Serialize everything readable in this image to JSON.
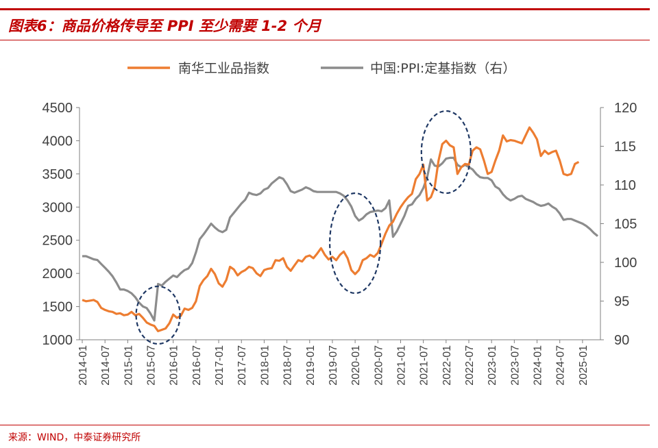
{
  "header": {
    "title": "图表6：商品价格传导至 PPI 至少需要 1-2 个月"
  },
  "footer": {
    "source": "来源：WIND，中泰证券研究所"
  },
  "colors": {
    "accent": "#c00000",
    "series1": "#ed7d31",
    "series2": "#8c8c8c",
    "ellipse": "#1f3864",
    "axis": "#7f7f7f"
  },
  "chart_data": {
    "type": "line",
    "title": "",
    "left_axis": {
      "ylim": [
        1000,
        4500
      ],
      "ticks": [
        "1000",
        "1500",
        "2000",
        "2500",
        "3000",
        "3500",
        "4000",
        "4500"
      ]
    },
    "right_axis": {
      "ylim": [
        90,
        120
      ],
      "ticks": [
        "90",
        "95",
        "100",
        "105",
        "110",
        "115",
        "120"
      ]
    },
    "x_tick_labels": [
      "2014-01",
      "2014-07",
      "2015-01",
      "2015-07",
      "2016-01",
      "2016-07",
      "2017-01",
      "2017-07",
      "2018-01",
      "2018-07",
      "2019-01",
      "2019-07",
      "2020-01",
      "2020-07",
      "2021-01",
      "2021-07",
      "2022-01",
      "2022-07",
      "2023-01",
      "2023-07",
      "2024-01",
      "2024-07",
      "2025-01"
    ],
    "x_range": [
      "2014-01",
      "2025-05"
    ],
    "grid": false,
    "legend": "top-center",
    "series": [
      {
        "name": "南华工业品指数",
        "axis": "left",
        "color": "#ed7d31",
        "points": [
          [
            "2014-01",
            1600
          ],
          [
            "2014-02",
            1580
          ],
          [
            "2014-03",
            1590
          ],
          [
            "2014-04",
            1600
          ],
          [
            "2014-05",
            1570
          ],
          [
            "2014-06",
            1480
          ],
          [
            "2014-07",
            1450
          ],
          [
            "2014-08",
            1430
          ],
          [
            "2014-09",
            1420
          ],
          [
            "2014-10",
            1390
          ],
          [
            "2014-11",
            1400
          ],
          [
            "2014-12",
            1370
          ],
          [
            "2015-01",
            1380
          ],
          [
            "2015-02",
            1420
          ],
          [
            "2015-03",
            1370
          ],
          [
            "2015-04",
            1390
          ],
          [
            "2015-05",
            1330
          ],
          [
            "2015-06",
            1260
          ],
          [
            "2015-07",
            1230
          ],
          [
            "2015-08",
            1210
          ],
          [
            "2015-09",
            1130
          ],
          [
            "2015-10",
            1150
          ],
          [
            "2015-11",
            1170
          ],
          [
            "2015-12",
            1250
          ],
          [
            "2016-01",
            1380
          ],
          [
            "2016-02",
            1330
          ],
          [
            "2016-03",
            1360
          ],
          [
            "2016-04",
            1470
          ],
          [
            "2016-05",
            1450
          ],
          [
            "2016-06",
            1480
          ],
          [
            "2016-07",
            1580
          ],
          [
            "2016-08",
            1810
          ],
          [
            "2016-09",
            1900
          ],
          [
            "2016-10",
            1960
          ],
          [
            "2016-11",
            2070
          ],
          [
            "2016-12",
            1990
          ],
          [
            "2017-01",
            1850
          ],
          [
            "2017-02",
            1800
          ],
          [
            "2017-03",
            1900
          ],
          [
            "2017-04",
            2100
          ],
          [
            "2017-05",
            2060
          ],
          [
            "2017-06",
            1970
          ],
          [
            "2017-07",
            2020
          ],
          [
            "2017-08",
            2050
          ],
          [
            "2017-09",
            2100
          ],
          [
            "2017-10",
            2080
          ],
          [
            "2017-11",
            2000
          ],
          [
            "2017-12",
            1960
          ],
          [
            "2018-01",
            2050
          ],
          [
            "2018-02",
            2070
          ],
          [
            "2018-03",
            2080
          ],
          [
            "2018-04",
            2200
          ],
          [
            "2018-05",
            2190
          ],
          [
            "2018-06",
            2230
          ],
          [
            "2018-07",
            2100
          ],
          [
            "2018-08",
            2040
          ],
          [
            "2018-09",
            2120
          ],
          [
            "2018-10",
            2200
          ],
          [
            "2018-11",
            2180
          ],
          [
            "2018-12",
            2250
          ],
          [
            "2019-01",
            2270
          ],
          [
            "2019-02",
            2230
          ],
          [
            "2019-03",
            2300
          ],
          [
            "2019-04",
            2380
          ],
          [
            "2019-05",
            2280
          ],
          [
            "2019-06",
            2210
          ],
          [
            "2019-07",
            2250
          ],
          [
            "2019-08",
            2200
          ],
          [
            "2019-09",
            2280
          ],
          [
            "2019-10",
            2330
          ],
          [
            "2019-11",
            2230
          ],
          [
            "2019-12",
            2050
          ],
          [
            "2020-01",
            1990
          ],
          [
            "2020-02",
            2050
          ],
          [
            "2020-03",
            2200
          ],
          [
            "2020-04",
            2230
          ],
          [
            "2020-05",
            2280
          ],
          [
            "2020-06",
            2250
          ],
          [
            "2020-07",
            2310
          ],
          [
            "2020-08",
            2450
          ],
          [
            "2020-09",
            2600
          ],
          [
            "2020-10",
            2720
          ],
          [
            "2020-11",
            2780
          ],
          [
            "2020-12",
            2900
          ],
          [
            "2021-01",
            3000
          ],
          [
            "2021-02",
            3080
          ],
          [
            "2021-03",
            3150
          ],
          [
            "2021-04",
            3200
          ],
          [
            "2021-05",
            3420
          ],
          [
            "2021-06",
            3500
          ],
          [
            "2021-07",
            3640
          ],
          [
            "2021-08",
            3100
          ],
          [
            "2021-09",
            3150
          ],
          [
            "2021-10",
            3300
          ],
          [
            "2021-11",
            3700
          ],
          [
            "2021-12",
            3950
          ],
          [
            "2022-01",
            4000
          ],
          [
            "2022-02",
            3930
          ],
          [
            "2022-03",
            3900
          ],
          [
            "2022-04",
            3500
          ],
          [
            "2022-05",
            3600
          ],
          [
            "2022-06",
            3650
          ],
          [
            "2022-07",
            3640
          ],
          [
            "2022-08",
            3850
          ],
          [
            "2022-09",
            3900
          ],
          [
            "2022-10",
            3870
          ],
          [
            "2022-11",
            3700
          ],
          [
            "2022-12",
            3500
          ],
          [
            "2023-01",
            3530
          ],
          [
            "2023-02",
            3700
          ],
          [
            "2023-03",
            3850
          ],
          [
            "2023-04",
            4080
          ],
          [
            "2023-05",
            3990
          ],
          [
            "2023-06",
            4010
          ],
          [
            "2023-07",
            4000
          ],
          [
            "2023-08",
            3980
          ],
          [
            "2023-09",
            3960
          ],
          [
            "2023-10",
            4080
          ],
          [
            "2023-11",
            4200
          ],
          [
            "2023-12",
            4120
          ],
          [
            "2024-01",
            4020
          ],
          [
            "2024-02",
            3770
          ],
          [
            "2024-03",
            3850
          ],
          [
            "2024-04",
            3800
          ],
          [
            "2024-05",
            3830
          ],
          [
            "2024-06",
            3850
          ],
          [
            "2024-07",
            3700
          ],
          [
            "2024-08",
            3500
          ],
          [
            "2024-09",
            3480
          ],
          [
            "2024-10",
            3500
          ],
          [
            "2024-11",
            3650
          ],
          [
            "2024-12",
            3680
          ]
        ]
      },
      {
        "name": "中国:PPI:定基指数（右）",
        "axis": "right",
        "color": "#8c8c8c",
        "points": [
          [
            "2014-01",
            100.8
          ],
          [
            "2014-02",
            100.8
          ],
          [
            "2014-03",
            100.6
          ],
          [
            "2014-04",
            100.4
          ],
          [
            "2014-05",
            100.3
          ],
          [
            "2014-06",
            99.8
          ],
          [
            "2014-07",
            99.3
          ],
          [
            "2014-08",
            98.8
          ],
          [
            "2014-09",
            98.2
          ],
          [
            "2014-10",
            97.4
          ],
          [
            "2014-11",
            96.5
          ],
          [
            "2014-12",
            96.5
          ],
          [
            "2015-01",
            96.3
          ],
          [
            "2015-02",
            96.0
          ],
          [
            "2015-03",
            95.5
          ],
          [
            "2015-04",
            94.8
          ],
          [
            "2015-05",
            94.3
          ],
          [
            "2015-06",
            94.1
          ],
          [
            "2015-07",
            93.4
          ],
          [
            "2015-08",
            92.5
          ],
          [
            "2015-09",
            97.2
          ],
          [
            "2015-10",
            97.0
          ],
          [
            "2015-11",
            97.5
          ],
          [
            "2015-12",
            97.9
          ],
          [
            "2016-01",
            98.3
          ],
          [
            "2016-02",
            98.1
          ],
          [
            "2016-03",
            98.6
          ],
          [
            "2016-04",
            99.0
          ],
          [
            "2016-05",
            99.2
          ],
          [
            "2016-06",
            99.9
          ],
          [
            "2016-07",
            101.3
          ],
          [
            "2016-08",
            103.0
          ],
          [
            "2016-09",
            103.6
          ],
          [
            "2016-10",
            104.3
          ],
          [
            "2016-11",
            105.0
          ],
          [
            "2016-12",
            104.5
          ],
          [
            "2017-01",
            104.1
          ],
          [
            "2017-02",
            103.9
          ],
          [
            "2017-03",
            104.2
          ],
          [
            "2017-04",
            105.8
          ],
          [
            "2017-05",
            106.4
          ],
          [
            "2017-06",
            107.0
          ],
          [
            "2017-07",
            107.6
          ],
          [
            "2017-08",
            108.1
          ],
          [
            "2017-09",
            109.0
          ],
          [
            "2017-10",
            108.8
          ],
          [
            "2017-11",
            108.7
          ],
          [
            "2017-12",
            108.9
          ],
          [
            "2018-01",
            109.4
          ],
          [
            "2018-02",
            109.6
          ],
          [
            "2018-03",
            110.2
          ],
          [
            "2018-04",
            110.6
          ],
          [
            "2018-05",
            111.0
          ],
          [
            "2018-06",
            110.8
          ],
          [
            "2018-07",
            110.1
          ],
          [
            "2018-08",
            109.2
          ],
          [
            "2018-09",
            109.0
          ],
          [
            "2018-10",
            109.2
          ],
          [
            "2018-11",
            109.4
          ],
          [
            "2018-12",
            109.7
          ],
          [
            "2019-01",
            109.5
          ],
          [
            "2019-02",
            109.2
          ],
          [
            "2019-03",
            109.1
          ],
          [
            "2019-04",
            109.1
          ],
          [
            "2019-05",
            109.1
          ],
          [
            "2019-06",
            109.1
          ],
          [
            "2019-07",
            109.1
          ],
          [
            "2019-08",
            109.1
          ],
          [
            "2019-09",
            108.9
          ],
          [
            "2019-10",
            108.6
          ],
          [
            "2019-11",
            108.0
          ],
          [
            "2019-12",
            107.2
          ],
          [
            "2020-01",
            106.0
          ],
          [
            "2020-02",
            105.4
          ],
          [
            "2020-03",
            105.7
          ],
          [
            "2020-04",
            106.2
          ],
          [
            "2020-05",
            106.5
          ],
          [
            "2020-06",
            106.6
          ],
          [
            "2020-07",
            106.7
          ],
          [
            "2020-08",
            106.6
          ],
          [
            "2020-09",
            107.0
          ],
          [
            "2020-10",
            108.0
          ],
          [
            "2020-11",
            103.3
          ],
          [
            "2020-12",
            104.0
          ],
          [
            "2021-01",
            105.0
          ],
          [
            "2021-02",
            106.0
          ],
          [
            "2021-03",
            107.3
          ],
          [
            "2021-04",
            107.5
          ],
          [
            "2021-05",
            108.2
          ],
          [
            "2021-06",
            108.7
          ],
          [
            "2021-07",
            109.6
          ],
          [
            "2021-08",
            111.0
          ],
          [
            "2021-09",
            113.3
          ],
          [
            "2021-10",
            112.5
          ],
          [
            "2021-11",
            112.4
          ],
          [
            "2021-12",
            112.8
          ],
          [
            "2022-01",
            113.4
          ],
          [
            "2022-02",
            113.5
          ],
          [
            "2022-03",
            113.5
          ],
          [
            "2022-04",
            112.6
          ],
          [
            "2022-05",
            112.3
          ],
          [
            "2022-06",
            112.6
          ],
          [
            "2022-07",
            112.3
          ],
          [
            "2022-08",
            112.0
          ],
          [
            "2022-09",
            111.4
          ],
          [
            "2022-10",
            111.0
          ],
          [
            "2022-11",
            110.9
          ],
          [
            "2022-12",
            110.9
          ],
          [
            "2023-01",
            110.6
          ],
          [
            "2023-02",
            109.8
          ],
          [
            "2023-03",
            109.5
          ],
          [
            "2023-04",
            108.8
          ],
          [
            "2023-05",
            108.3
          ],
          [
            "2023-06",
            108.0
          ],
          [
            "2023-07",
            108.2
          ],
          [
            "2023-08",
            108.5
          ],
          [
            "2023-09",
            108.6
          ],
          [
            "2023-10",
            108.2
          ],
          [
            "2023-11",
            108.0
          ],
          [
            "2023-12",
            107.8
          ],
          [
            "2024-01",
            107.5
          ],
          [
            "2024-02",
            107.3
          ],
          [
            "2024-03",
            107.4
          ],
          [
            "2024-04",
            107.6
          ],
          [
            "2024-05",
            107.2
          ],
          [
            "2024-06",
            106.9
          ],
          [
            "2024-07",
            106.3
          ],
          [
            "2024-08",
            105.5
          ],
          [
            "2024-09",
            105.6
          ],
          [
            "2024-10",
            105.6
          ],
          [
            "2024-11",
            105.4
          ],
          [
            "2024-12",
            105.2
          ],
          [
            "2025-01",
            105.0
          ],
          [
            "2025-02",
            104.7
          ],
          [
            "2025-03",
            104.3
          ],
          [
            "2025-04",
            103.8
          ],
          [
            "2025-05",
            103.4
          ]
        ]
      }
    ],
    "annotations": [
      {
        "type": "dashed-ellipse",
        "center": "2015-09"
      },
      {
        "type": "dashed-ellipse",
        "center": "2020-01"
      },
      {
        "type": "dashed-ellipse",
        "center": "2022-01"
      }
    ]
  }
}
